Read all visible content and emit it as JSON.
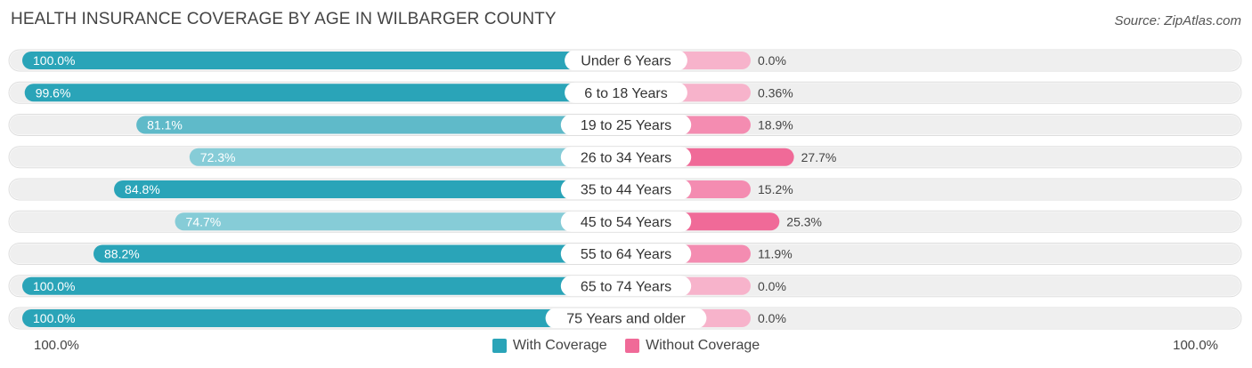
{
  "title": "HEALTH INSURANCE COVERAGE BY AGE IN WILBARGER COUNTY",
  "source": "Source: ZipAtlas.com",
  "colors": {
    "with_strong": "#2aa4b8",
    "with_light": "#86ccd7",
    "without_strong": "#f06a98",
    "without_light": "#f7b3cb",
    "track": "#efefef"
  },
  "chart_data": {
    "type": "bar",
    "orientation": "horizontal-diverging",
    "categories": [
      "Under 6 Years",
      "6 to 18 Years",
      "19 to 25 Years",
      "26 to 34 Years",
      "35 to 44 Years",
      "45 to 54 Years",
      "55 to 64 Years",
      "65 to 74 Years",
      "75 Years and older"
    ],
    "series": [
      {
        "name": "With Coverage",
        "values": [
          100.0,
          99.6,
          81.1,
          72.3,
          84.8,
          74.7,
          88.2,
          100.0,
          100.0
        ],
        "labels": [
          "100.0%",
          "99.6%",
          "81.1%",
          "72.3%",
          "84.8%",
          "74.7%",
          "88.2%",
          "100.0%",
          "100.0%"
        ]
      },
      {
        "name": "Without Coverage",
        "values": [
          0.0,
          0.36,
          18.9,
          27.7,
          15.2,
          25.3,
          11.9,
          0.0,
          0.0
        ],
        "labels": [
          "0.0%",
          "0.36%",
          "18.9%",
          "27.7%",
          "15.2%",
          "25.3%",
          "11.9%",
          "0.0%",
          "0.0%"
        ]
      }
    ],
    "axis_left_label": "100.0%",
    "axis_right_label": "100.0%",
    "legend": [
      "With Coverage",
      "Without Coverage"
    ]
  }
}
